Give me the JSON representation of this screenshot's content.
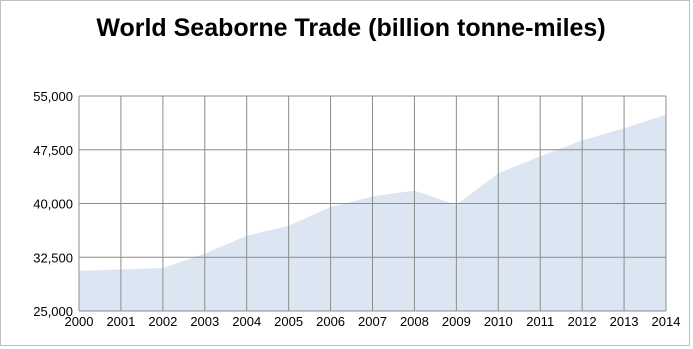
{
  "chart_data": {
    "type": "area",
    "title": "World Seaborne Trade (billion tonne-miles)",
    "xlabel": "",
    "ylabel": "",
    "x": [
      "2000",
      "2001",
      "2002",
      "2003",
      "2004",
      "2005",
      "2006",
      "2007",
      "2008",
      "2009",
      "2010",
      "2011",
      "2012",
      "2013",
      "2014"
    ],
    "y_ticks": [
      "25,000",
      "32,500",
      "40,000",
      "47,500",
      "55,000"
    ],
    "ylim": [
      25000,
      55000
    ],
    "grid": true,
    "legend": "none",
    "series": [
      {
        "values": [
          30600,
          30800,
          31000,
          33000,
          35500,
          36900,
          39500,
          41000,
          41800,
          39800,
          44200,
          46600,
          48800,
          50500,
          52400
        ],
        "color": "#dce6f2"
      }
    ]
  }
}
